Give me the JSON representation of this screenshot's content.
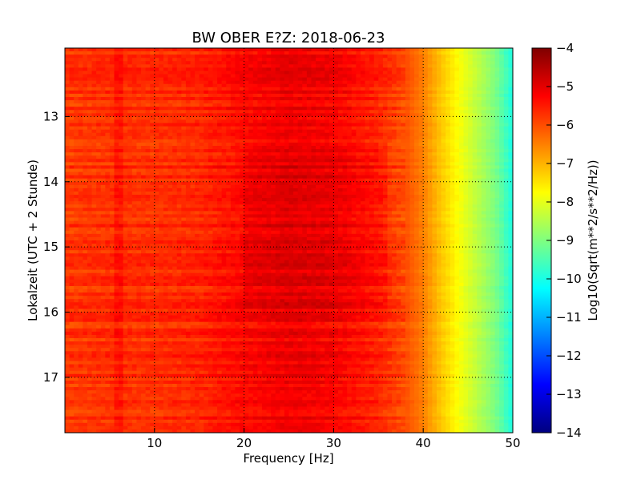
{
  "chart_data": {
    "type": "heatmap",
    "title": "BW OBER E?Z: 2018-06-23",
    "xlabel": "Frequency [Hz]",
    "ylabel": "Lokalzeit (UTC + 2 Stunde)",
    "xlim": [
      0,
      50
    ],
    "ylim": [
      17.85,
      11.95
    ],
    "xticks": [
      10,
      20,
      30,
      40,
      50
    ],
    "yticks": [
      13,
      14,
      15,
      16,
      17
    ],
    "grid": true,
    "colormap": "jet",
    "colorbar": {
      "label": "Log10(Sqrt(m**2/s**2/Hz))",
      "min": -14,
      "max": -4,
      "ticks": [
        -4,
        -5,
        -6,
        -7,
        -8,
        -9,
        -10,
        -11,
        -12,
        -13,
        -14
      ]
    },
    "frequency_profile": {
      "frequency_hz": [
        0,
        5,
        10,
        15,
        20,
        25,
        30,
        35,
        38,
        40,
        42,
        44,
        46,
        48,
        50
      ],
      "log10_amplitude": [
        -5.8,
        -5.7,
        -5.7,
        -5.6,
        -5.3,
        -5.1,
        -5.2,
        -5.6,
        -6.0,
        -6.5,
        -7.2,
        -7.8,
        -8.4,
        -9.0,
        -10.0
      ]
    },
    "time_events": [
      {
        "time_range": [
          13.4,
          15.95
        ],
        "description_level": -5.2
      }
    ]
  }
}
